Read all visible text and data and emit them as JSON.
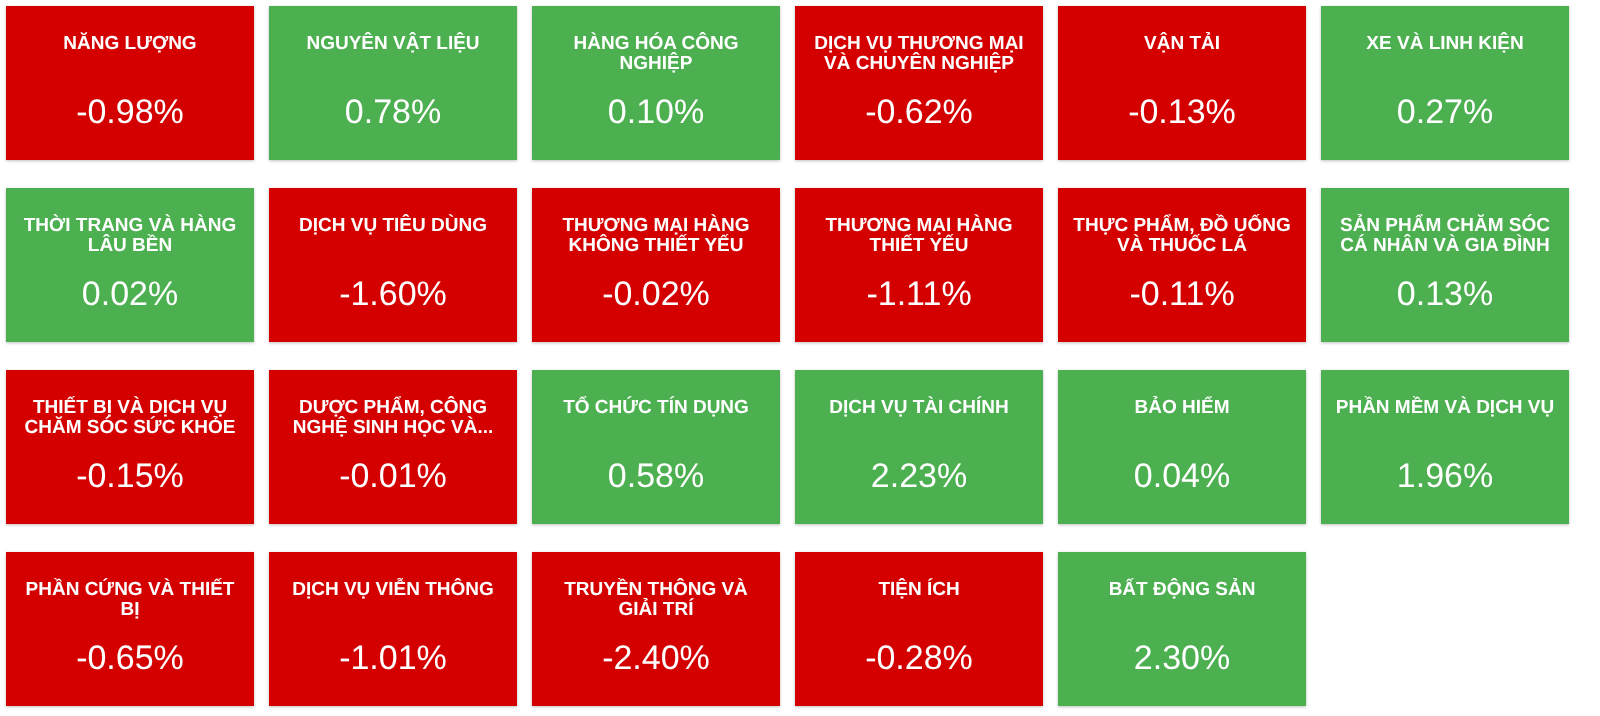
{
  "chart_data": {
    "type": "other",
    "categories": [
      "NĂNG LƯỢNG",
      "NGUYÊN VẬT LIỆU",
      "HÀNG HÓA CÔNG NGHIỆP",
      "DỊCH VỤ THƯƠNG MẠI VÀ CHUYÊN NGHIỆP",
      "VẬN TẢI",
      "XE VÀ LINH KIỆN",
      "THỜI TRANG VÀ HÀNG LÂU BỀN",
      "DỊCH VỤ TIÊU DÙNG",
      "THƯƠNG MẠI HÀNG KHÔNG THIẾT YẾU",
      "THƯƠNG MẠI HÀNG THIẾT YẾU",
      "THỰC PHẨM, ĐỒ UỐNG VÀ THUỐC LÁ",
      "SẢN PHẨM CHĂM SÓC CÁ NHÂN VÀ GIA ĐÌNH",
      "THIẾT BỊ VÀ DỊCH VỤ CHĂM SÓC SỨC KHỎE",
      "DƯỢC PHẨM, CÔNG NGHỆ SINH HỌC VÀ...",
      "TỔ CHỨC TÍN DỤNG",
      "DỊCH VỤ TÀI CHÍNH",
      "BẢO HIỂM",
      "PHẦN MỀM VÀ DỊCH VỤ",
      "PHẦN CỨNG VÀ THIẾT BỊ",
      "DỊCH VỤ VIỄN THÔNG",
      "TRUYỀN THÔNG VÀ GIẢI TRÍ",
      "TIỆN ÍCH",
      "BẤT ĐỘNG SẢN"
    ],
    "values": [
      -0.98,
      0.78,
      0.1,
      -0.62,
      -0.13,
      0.27,
      0.02,
      -1.6,
      -0.02,
      -1.11,
      -0.11,
      0.13,
      -0.15,
      -0.01,
      0.58,
      2.23,
      0.04,
      1.96,
      -0.65,
      -1.01,
      -2.4,
      -0.28,
      2.3
    ],
    "value_labels": [
      "-0.98%",
      "0.78%",
      "0.10%",
      "-0.62%",
      "-0.13%",
      "0.27%",
      "0.02%",
      "-1.60%",
      "-0.02%",
      "-1.11%",
      "-0.11%",
      "0.13%",
      "-0.15%",
      "-0.01%",
      "0.58%",
      "2.23%",
      "0.04%",
      "1.96%",
      "-0.65%",
      "-1.01%",
      "-2.40%",
      "-0.28%",
      "2.30%"
    ],
    "colors": [
      "#d40000",
      "#4caf50",
      "#4caf50",
      "#d40000",
      "#d40000",
      "#4caf50",
      "#4caf50",
      "#d40000",
      "#d40000",
      "#d40000",
      "#d40000",
      "#4caf50",
      "#d40000",
      "#d40000",
      "#4caf50",
      "#4caf50",
      "#4caf50",
      "#4caf50",
      "#d40000",
      "#d40000",
      "#d40000",
      "#d40000",
      "#4caf50"
    ]
  }
}
